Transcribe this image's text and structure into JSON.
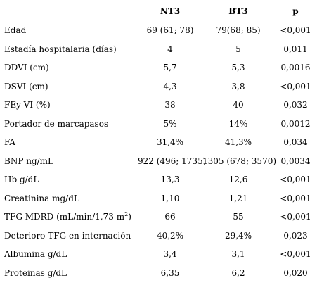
{
  "table": {
    "headers": [
      "",
      "NT3",
      "BT3",
      "p"
    ],
    "rows": [
      {
        "label": "Edad",
        "nt3": "69 (61; 78)",
        "bt3": "79(68; 85)",
        "p": "<0,001"
      },
      {
        "label": "Estadía hospitalaria (días)",
        "nt3": "4",
        "bt3": "5",
        "p": "0,011"
      },
      {
        "label": "DDVI (cm)",
        "nt3": "5,7",
        "bt3": "5,3",
        "p": "0,0016"
      },
      {
        "label": "DSVI (cm)",
        "nt3": "4,3",
        "bt3": "3,8",
        "p": "<0,001"
      },
      {
        "label": "FEy VI (%)",
        "nt3": "38",
        "bt3": "40",
        "p": "0,032"
      },
      {
        "label": "Portador de marcapasos",
        "nt3": "5%",
        "bt3": "14%",
        "p": "0,0012"
      },
      {
        "label": "FA",
        "nt3": "31,4%",
        "bt3": "41,3%",
        "p": "0,034"
      },
      {
        "label": "BNP ng/mL",
        "nt3": "922 (496; 1735)",
        "bt3": "1305 (678; 3570)",
        "p": "0,0034"
      },
      {
        "label": "Hb g/dL",
        "nt3": "13,3",
        "bt3": "12,6",
        "p": "<0,001"
      },
      {
        "label": "Creatinina mg/dL",
        "nt3": "1,10",
        "bt3": "1,21",
        "p": "<0,001"
      },
      {
        "label": "TFG MDRD (mL/min/1,73 m",
        "label_sup": "2",
        "label_suffix": ")",
        "nt3": "66",
        "bt3": "55",
        "p": "<0,001"
      },
      {
        "label": "Deterioro TFG en internación",
        "nt3": "40,2%",
        "bt3": "29,4%",
        "p": "0,023"
      },
      {
        "label": "Albumina g/dL",
        "nt3": "3,4",
        "bt3": "3,1",
        "p": "<0,001"
      },
      {
        "label": "Proteinas g/dL",
        "nt3": "6,35",
        "bt3": "6,2",
        "p": "0,020"
      }
    ]
  }
}
